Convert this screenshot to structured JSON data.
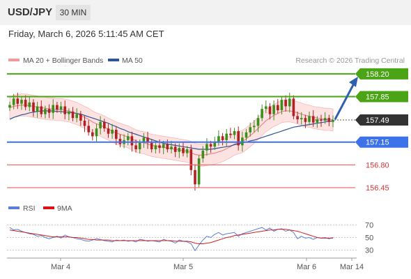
{
  "header": {
    "pair": "USD/JPY",
    "timeframe": "30 MIN",
    "datetime": "Friday, March 6, 2026 5:11:45 AM CET"
  },
  "legend": {
    "ma20": "MA 20 + Bollinger Bands",
    "ma50": "MA 50",
    "credit": "Research © 2026 Trading Central",
    "rsi": "RSI",
    "ma9": "9MA"
  },
  "colors": {
    "resistance": "#4aa415",
    "support": "#3d72e8",
    "minor_support": "#ef6f6f",
    "bollinger_fill": "#fde2e2",
    "ma20": "#e88a8a",
    "ma50": "#2f5597",
    "bull_candle": "#3d8f1c",
    "bear_candle": "#b12121",
    "current": "#333333",
    "arrow": "#2f5fb0"
  },
  "chart_data": [
    {
      "type": "candlestick",
      "title": "USD/JPY 30 MIN",
      "ylim": [
        156.3,
        158.3
      ],
      "x_ticks": [
        "Mar 4",
        "Mar 5",
        "Mar 6",
        "Mar 14"
      ],
      "current_price": "157.49",
      "levels": [
        {
          "value": 158.2,
          "label": "158.20",
          "kind": "resistance"
        },
        {
          "value": 157.85,
          "label": "157.85",
          "kind": "resistance"
        },
        {
          "value": 157.15,
          "label": "157.15",
          "kind": "support"
        },
        {
          "value": 156.8,
          "label": "156.80",
          "kind": "minor_support"
        },
        {
          "value": 156.45,
          "label": "156.45",
          "kind": "minor_support"
        }
      ],
      "projection": {
        "from": 157.5,
        "to": 158.2
      },
      "series": [
        {
          "name": "Price",
          "close": [
            157.72,
            157.82,
            157.74,
            157.8,
            157.69,
            157.76,
            157.62,
            157.7,
            157.58,
            157.66,
            157.6,
            157.72,
            157.65,
            157.7,
            157.58,
            157.62,
            157.52,
            157.58,
            157.48,
            157.4,
            157.3,
            157.24,
            157.36,
            157.46,
            157.36,
            157.28,
            157.34,
            157.2,
            157.12,
            157.18,
            157.24,
            157.1,
            157.04,
            157.14,
            157.22,
            157.14,
            157.04,
            157.1,
            157.06,
            157.12,
            157.04,
            157.08,
            157.0,
            157.06,
            156.98,
            157.04,
            156.72,
            156.5,
            156.9,
            157.02,
            157.12,
            157.08,
            157.16,
            157.24,
            157.18,
            157.28,
            157.26,
            157.32,
            157.1,
            157.22,
            157.3,
            157.38,
            157.4,
            157.52,
            157.66,
            157.7,
            157.58,
            157.72,
            157.64,
            157.8,
            157.7,
            157.82,
            157.55,
            157.5,
            157.52,
            157.46,
            157.55,
            157.45,
            157.5,
            157.48,
            157.52,
            157.46,
            157.49
          ]
        },
        {
          "name": "MA 20",
          "values": [
            157.68,
            157.7,
            157.71,
            157.72,
            157.72,
            157.71,
            157.7,
            157.69,
            157.68,
            157.67,
            157.66,
            157.66,
            157.65,
            157.65,
            157.64,
            157.63,
            157.61,
            157.59,
            157.56,
            157.53,
            157.5,
            157.46,
            157.43,
            157.41,
            157.38,
            157.35,
            157.32,
            157.29,
            157.27,
            157.25,
            157.23,
            157.2,
            157.17,
            157.15,
            157.14,
            157.12,
            157.1,
            157.09,
            157.08,
            157.07,
            157.06,
            157.05,
            157.04,
            157.03,
            157.02,
            157.01,
            156.99,
            156.96,
            156.95,
            156.95,
            156.96,
            156.97,
            156.98,
            157.0,
            157.02,
            157.05,
            157.08,
            157.12,
            157.14,
            157.16,
            157.2,
            157.25,
            157.3,
            157.36,
            157.42,
            157.48,
            157.52,
            157.56,
            157.59,
            157.62,
            157.63,
            157.63,
            157.62,
            157.6,
            157.58,
            157.56,
            157.55,
            157.53,
            157.52,
            157.51,
            157.5,
            157.5,
            157.49
          ]
        },
        {
          "name": "MA 50",
          "values": [
            157.5,
            157.53,
            157.55,
            157.57,
            157.58,
            157.6,
            157.61,
            157.62,
            157.63,
            157.63,
            157.63,
            157.63,
            157.62,
            157.62,
            157.61,
            157.61,
            157.6,
            157.59,
            157.58,
            157.56,
            157.54,
            157.52,
            157.5,
            157.48,
            157.46,
            157.44,
            157.41,
            157.39,
            157.36,
            157.34,
            157.31,
            157.29,
            157.27,
            157.25,
            157.23,
            157.21,
            157.19,
            157.17,
            157.15,
            157.13,
            157.12,
            157.11,
            157.1,
            157.09,
            157.08,
            157.07,
            157.06,
            157.05,
            157.04,
            157.04,
            157.04,
            157.04,
            157.05,
            157.06,
            157.07,
            157.08,
            157.09,
            157.11,
            157.12,
            157.14,
            157.15,
            157.17,
            157.18,
            157.2,
            157.22,
            157.24,
            157.26,
            157.28,
            157.3,
            157.32,
            157.34,
            157.36,
            157.38,
            157.39,
            157.4,
            157.41,
            157.42,
            157.43,
            157.44,
            157.45,
            157.46,
            157.47,
            157.47
          ]
        }
      ]
    },
    {
      "type": "line",
      "title": "RSI",
      "ylim": [
        20,
        80
      ],
      "y_ticks": [
        70,
        50,
        30
      ],
      "series": [
        {
          "name": "RSI",
          "values": [
            66,
            62,
            63,
            60,
            58,
            56,
            55,
            52,
            53,
            50,
            48,
            50,
            52,
            49,
            54,
            51,
            50,
            48,
            47,
            45,
            44,
            46,
            48,
            47,
            45,
            44,
            43,
            46,
            45,
            46,
            44,
            45,
            43,
            47,
            46,
            44,
            45,
            44,
            43,
            47,
            45,
            44,
            41,
            46,
            44,
            43,
            40,
            29,
            38,
            46,
            52,
            50,
            55,
            58,
            54,
            56,
            57,
            58,
            52,
            56,
            58,
            60,
            62,
            64,
            66,
            62,
            65,
            60,
            63,
            64,
            60,
            62,
            58,
            48,
            52,
            49,
            50,
            47,
            50,
            49,
            50,
            48,
            50
          ]
        },
        {
          "name": "9MA",
          "values": [
            62,
            61,
            60,
            59,
            58,
            57,
            56,
            55,
            54,
            53,
            52,
            51,
            51,
            51,
            51,
            51,
            50,
            50,
            49,
            48,
            47,
            47,
            46,
            46,
            46,
            46,
            45,
            45,
            45,
            45,
            45,
            45,
            45,
            45,
            45,
            45,
            45,
            45,
            45,
            45,
            45,
            45,
            44,
            44,
            44,
            44,
            43,
            41,
            40,
            40,
            41,
            42,
            44,
            46,
            48,
            50,
            51,
            53,
            54,
            55,
            56,
            57,
            58,
            59,
            60,
            61,
            62,
            62,
            63,
            63,
            63,
            62,
            61,
            60,
            58,
            56,
            54,
            52,
            50,
            49,
            49,
            49,
            49
          ]
        }
      ]
    }
  ]
}
